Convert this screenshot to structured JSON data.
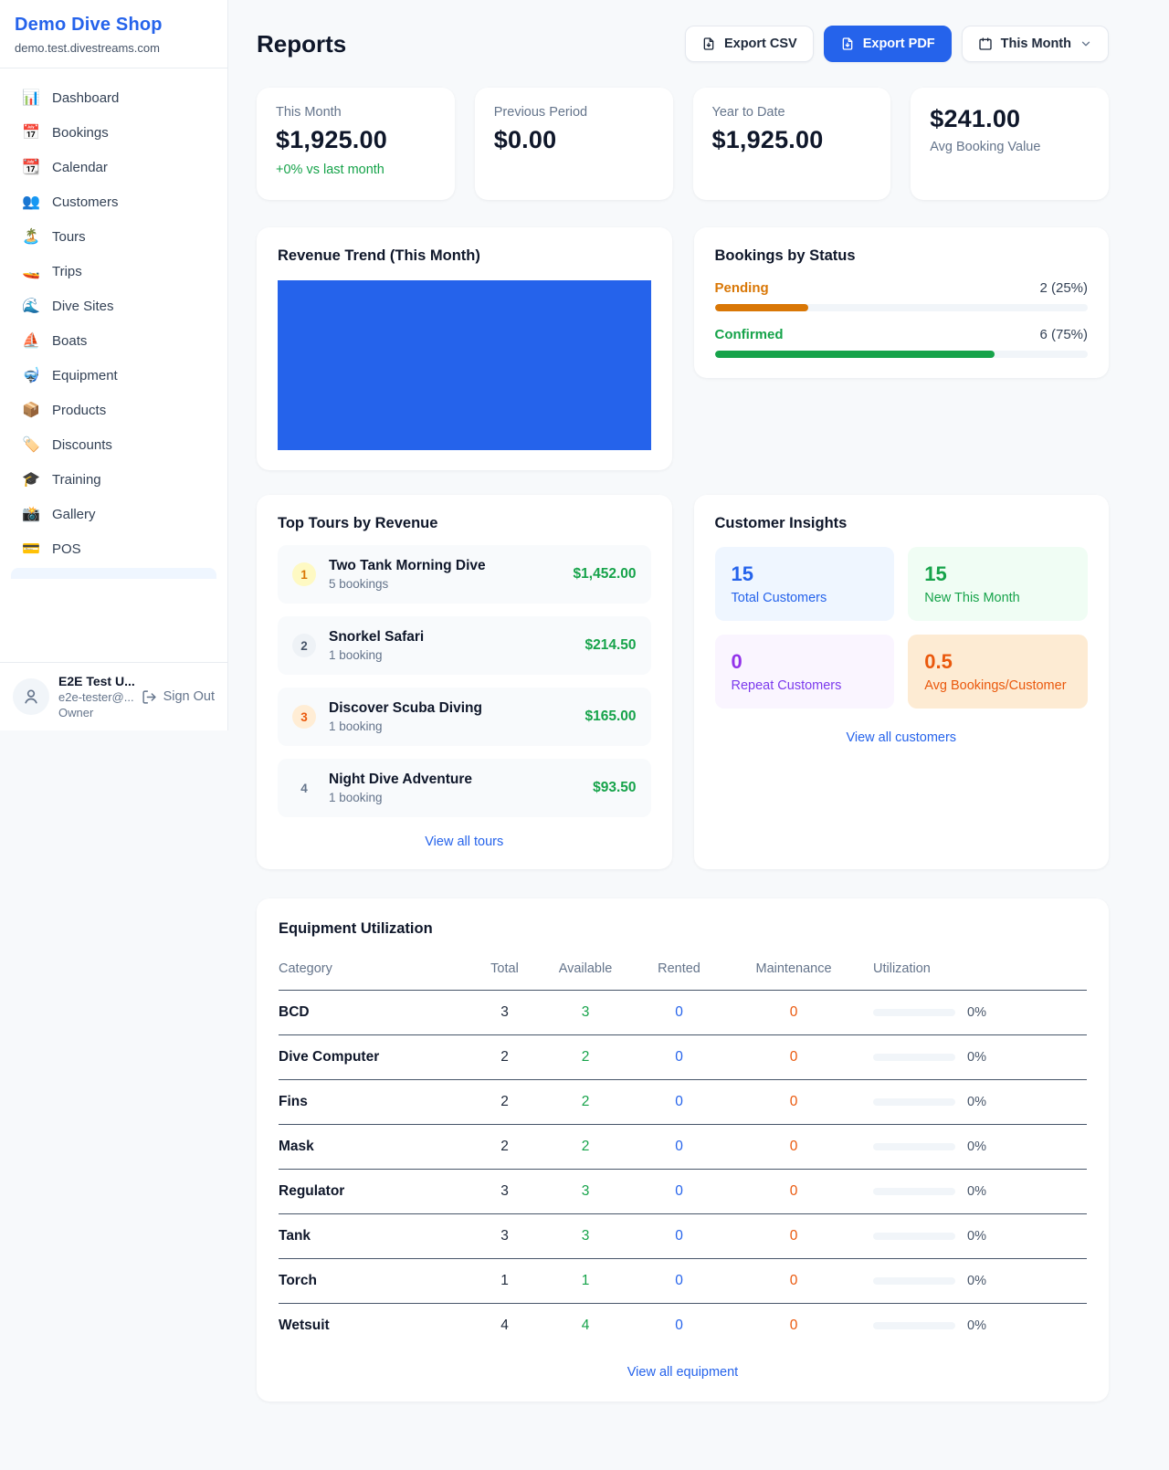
{
  "colors": {
    "brand_blue": "#2563eb",
    "link_blue": "#2563eb",
    "positive_green": "#16a34a",
    "pending_orange": "#d97706",
    "confirmed_green": "#16a34a",
    "rented_blue": "#2563eb",
    "maintenance_orange": "#ea580c",
    "repeat_purple": "#9333ea",
    "revenue_bar_blue": "#2563eb"
  },
  "sidebar": {
    "brand": "Demo Dive Shop",
    "domain": "demo.test.divestreams.com",
    "items": [
      {
        "icon": "📊",
        "icon_name": "bar-chart-icon",
        "label": "Dashboard"
      },
      {
        "icon": "📅",
        "icon_name": "calendar-date-icon",
        "label": "Bookings"
      },
      {
        "icon": "📆",
        "icon_name": "tear-off-calendar-icon",
        "label": "Calendar"
      },
      {
        "icon": "👥",
        "icon_name": "people-icon",
        "label": "Customers"
      },
      {
        "icon": "🏝️",
        "icon_name": "island-icon",
        "label": "Tours"
      },
      {
        "icon": "🚤",
        "icon_name": "boat-icon",
        "label": "Trips"
      },
      {
        "icon": "🌊",
        "icon_name": "wave-icon",
        "label": "Dive Sites"
      },
      {
        "icon": "⛵",
        "icon_name": "sailboat-icon",
        "label": "Boats"
      },
      {
        "icon": "🤿",
        "icon_name": "diving-mask-icon",
        "label": "Equipment"
      },
      {
        "icon": "📦",
        "icon_name": "package-icon",
        "label": "Products"
      },
      {
        "icon": "🏷️",
        "icon_name": "tag-icon",
        "label": "Discounts"
      },
      {
        "icon": "🎓",
        "icon_name": "graduation-cap-icon",
        "label": "Training"
      },
      {
        "icon": "📸",
        "icon_name": "camera-icon",
        "label": "Gallery"
      },
      {
        "icon": "💳",
        "icon_name": "credit-card-icon",
        "label": "POS"
      }
    ],
    "user": {
      "name": "E2E Test U...",
      "email": "e2e-tester@...",
      "role": "Owner",
      "signout_label": "Sign Out"
    }
  },
  "header": {
    "title": "Reports",
    "export_csv_label": "Export CSV",
    "export_pdf_label": "Export PDF",
    "period_label": "This Month"
  },
  "stats": {
    "cards": [
      {
        "label": "This Month",
        "value": "$1,925.00",
        "delta": "+0% vs last month"
      },
      {
        "label": "Previous Period",
        "value": "$0.00"
      },
      {
        "label": "Year to Date",
        "value": "$1,925.00"
      },
      {
        "label": "Avg Booking Value",
        "value": "$241.00"
      }
    ]
  },
  "revenue_trend": {
    "title": "Revenue Trend (This Month)"
  },
  "bookings_by_status": {
    "title": "Bookings by Status",
    "statuses": [
      {
        "label": "Pending",
        "count_text": "2 (25%)",
        "percent": 25,
        "color": "#d97706"
      },
      {
        "label": "Confirmed",
        "count_text": "6 (75%)",
        "percent": 75,
        "color": "#16a34a"
      }
    ]
  },
  "top_tours": {
    "title": "Top Tours by Revenue",
    "link_label": "View all tours",
    "items": [
      {
        "rank": "1",
        "name": "Two Tank Morning Dive",
        "bookings": "5 bookings",
        "amount": "$1,452.00"
      },
      {
        "rank": "2",
        "name": "Snorkel Safari",
        "bookings": "1 booking",
        "amount": "$214.50"
      },
      {
        "rank": "3",
        "name": "Discover Scuba Diving",
        "bookings": "1 booking",
        "amount": "$165.00"
      },
      {
        "rank": "4",
        "name": "Night Dive Adventure",
        "bookings": "1 booking",
        "amount": "$93.50"
      }
    ]
  },
  "customer_insights": {
    "title": "Customer Insights",
    "link_label": "View all customers",
    "boxes": [
      {
        "value": "15",
        "label": "Total Customers"
      },
      {
        "value": "15",
        "label": "New This Month"
      },
      {
        "value": "0",
        "label": "Repeat Customers"
      },
      {
        "value": "0.5",
        "label": "Avg Bookings/Customer"
      }
    ]
  },
  "equipment": {
    "title": "Equipment Utilization",
    "link_label": "View all equipment",
    "headers": [
      "Category",
      "Total",
      "Available",
      "Rented",
      "Maintenance",
      "Utilization"
    ],
    "rows": [
      {
        "category": "BCD",
        "total": "3",
        "available": "3",
        "rented": "0",
        "maintenance": "0",
        "utilization": "0%"
      },
      {
        "category": "Dive Computer",
        "total": "2",
        "available": "2",
        "rented": "0",
        "maintenance": "0",
        "utilization": "0%"
      },
      {
        "category": "Fins",
        "total": "2",
        "available": "2",
        "rented": "0",
        "maintenance": "0",
        "utilization": "0%"
      },
      {
        "category": "Mask",
        "total": "2",
        "available": "2",
        "rented": "0",
        "maintenance": "0",
        "utilization": "0%"
      },
      {
        "category": "Regulator",
        "total": "3",
        "available": "3",
        "rented": "0",
        "maintenance": "0",
        "utilization": "0%"
      },
      {
        "category": "Tank",
        "total": "3",
        "available": "3",
        "rented": "0",
        "maintenance": "0",
        "utilization": "0%"
      },
      {
        "category": "Torch",
        "total": "1",
        "available": "1",
        "rented": "0",
        "maintenance": "0",
        "utilization": "0%"
      },
      {
        "category": "Wetsuit",
        "total": "4",
        "available": "4",
        "rented": "0",
        "maintenance": "0",
        "utilization": "0%"
      }
    ]
  }
}
